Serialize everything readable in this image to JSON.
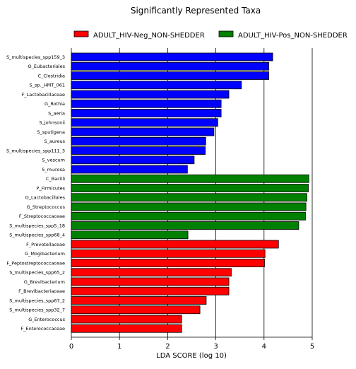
{
  "chart_data": {
    "type": "bar",
    "orientation": "horizontal",
    "title": "Significantly Represented Taxa",
    "xlabel": "LDA SCORE (log 10)",
    "ylabel": "",
    "xlim": [
      0,
      5
    ],
    "xticks": [
      "0",
      "1",
      "2",
      "3",
      "4",
      "5"
    ],
    "grid": "vertical",
    "legend_position": "top",
    "legend": [
      {
        "name": "ADULT_HIV-Neg_NON-SHEDDER",
        "color": "#ff0000"
      },
      {
        "name": "ADULT_HIV-Pos_NON-SHEDDER",
        "color": "#008000"
      }
    ],
    "group_colors": {
      "blue": "#0000ff",
      "green": "#008000",
      "red": "#ff0000"
    },
    "bars": [
      {
        "label": "S_multispecies_spp159_3",
        "value": 4.18,
        "group": "blue"
      },
      {
        "label": "O_Eubacteriales",
        "value": 4.1,
        "group": "blue"
      },
      {
        "label": "C_Clostridia",
        "value": 4.1,
        "group": "blue"
      },
      {
        "label": "S_sp._HMT_061",
        "value": 3.53,
        "group": "blue"
      },
      {
        "label": "F_Lactobacillaceae",
        "value": 3.27,
        "group": "blue"
      },
      {
        "label": "G_Rothia",
        "value": 3.11,
        "group": "blue"
      },
      {
        "label": "S_aeria",
        "value": 3.11,
        "group": "blue"
      },
      {
        "label": "S_johnsonii",
        "value": 3.04,
        "group": "blue"
      },
      {
        "label": "S_sputigena",
        "value": 2.96,
        "group": "blue"
      },
      {
        "label": "S_aureus",
        "value": 2.79,
        "group": "blue"
      },
      {
        "label": "S_multispecies_spp111_3",
        "value": 2.78,
        "group": "blue"
      },
      {
        "label": "S_vescum",
        "value": 2.55,
        "group": "blue"
      },
      {
        "label": "S_mucosa",
        "value": 2.41,
        "group": "blue"
      },
      {
        "label": "C_Bacilli",
        "value": 4.93,
        "group": "green"
      },
      {
        "label": "P_Firmicutes",
        "value": 4.92,
        "group": "green"
      },
      {
        "label": "O_Lactobacillales",
        "value": 4.89,
        "group": "green"
      },
      {
        "label": "G_Streptococcus",
        "value": 4.87,
        "group": "green"
      },
      {
        "label": "F_Streptococcaceae",
        "value": 4.86,
        "group": "green"
      },
      {
        "label": "S_multispecies_spp5_18",
        "value": 4.72,
        "group": "green"
      },
      {
        "label": "S_multispecies_spp68_4",
        "value": 2.42,
        "group": "green"
      },
      {
        "label": "F_Prevotellaceae",
        "value": 4.3,
        "group": "red"
      },
      {
        "label": "G_Mogibacterium",
        "value": 4.02,
        "group": "red"
      },
      {
        "label": "F_Peptostreptococcaceae",
        "value": 4.01,
        "group": "red"
      },
      {
        "label": "S_multispecies_spp65_2",
        "value": 3.32,
        "group": "red"
      },
      {
        "label": "G_Brevibacterium",
        "value": 3.27,
        "group": "red"
      },
      {
        "label": "F_Brevibacteriaceae",
        "value": 3.27,
        "group": "red"
      },
      {
        "label": "S_multispecies_spp67_2",
        "value": 2.8,
        "group": "red"
      },
      {
        "label": "S_multispecies_spp32_7",
        "value": 2.67,
        "group": "red"
      },
      {
        "label": "G_Enterococcus",
        "value": 2.29,
        "group": "red"
      },
      {
        "label": "F_Enterococcaceae",
        "value": 2.29,
        "group": "red"
      }
    ]
  }
}
